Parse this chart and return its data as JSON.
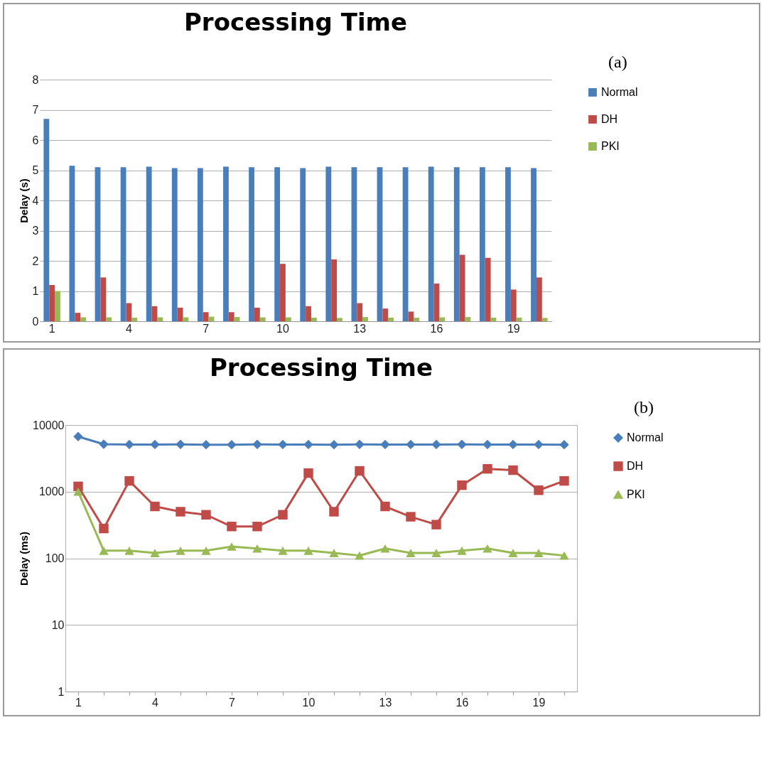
{
  "chart_data": [
    {
      "type": "bar",
      "title": "Processing Time",
      "ylabel": "Delay (s)",
      "annotations": [
        "(a)"
      ],
      "categories": [
        "1",
        null,
        null,
        "4",
        null,
        null,
        "7",
        null,
        null,
        "10",
        null,
        null,
        "13",
        null,
        null,
        "16",
        null,
        null,
        "19",
        null
      ],
      "series": [
        {
          "name": "Normal",
          "color": "#4a7ebb",
          "values": [
            6.7,
            5.15,
            5.1,
            5.1,
            5.12,
            5.07,
            5.07,
            5.12,
            5.1,
            5.1,
            5.07,
            5.12,
            5.1,
            5.1,
            5.1,
            5.12,
            5.1,
            5.1,
            5.1,
            5.07
          ]
        },
        {
          "name": "DH",
          "color": "#be4b48",
          "values": [
            1.2,
            0.28,
            1.45,
            0.6,
            0.5,
            0.45,
            0.3,
            0.3,
            0.45,
            1.9,
            0.5,
            2.05,
            0.6,
            0.42,
            0.32,
            1.25,
            2.2,
            2.1,
            1.05,
            1.45
          ]
        },
        {
          "name": "PKI",
          "color": "#98b954",
          "values": [
            1.0,
            0.13,
            0.13,
            0.12,
            0.13,
            0.13,
            0.15,
            0.14,
            0.13,
            0.13,
            0.12,
            0.11,
            0.14,
            0.12,
            0.12,
            0.13,
            0.14,
            0.12,
            0.12,
            0.11
          ]
        }
      ],
      "ylim": [
        0,
        8
      ],
      "yticks": [
        0,
        1,
        2,
        3,
        4,
        5,
        6,
        7,
        8
      ],
      "grid": "y",
      "legend": "right"
    },
    {
      "type": "line",
      "title": "Processing Time",
      "ylabel": "Delay (ms)",
      "annotations": [
        "(b)"
      ],
      "categories": [
        "1",
        null,
        null,
        "4",
        null,
        null,
        "7",
        null,
        null,
        "10",
        null,
        null,
        "13",
        null,
        null,
        "16",
        null,
        null,
        "19",
        null
      ],
      "series": [
        {
          "name": "Normal",
          "color": "#4a7ebb",
          "marker": "diamond",
          "values": [
            6700,
            5150,
            5100,
            5100,
            5120,
            5070,
            5070,
            5120,
            5100,
            5100,
            5070,
            5120,
            5100,
            5100,
            5100,
            5120,
            5100,
            5100,
            5100,
            5070
          ]
        },
        {
          "name": "DH",
          "color": "#be4b48",
          "marker": "square",
          "values": [
            1200,
            280,
            1450,
            600,
            500,
            450,
            300,
            300,
            450,
            1900,
            500,
            2050,
            600,
            420,
            320,
            1250,
            2200,
            2100,
            1050,
            1450
          ]
        },
        {
          "name": "PKI",
          "color": "#98b954",
          "marker": "triangle",
          "values": [
            1000,
            130,
            130,
            120,
            130,
            130,
            150,
            140,
            130,
            130,
            120,
            110,
            140,
            120,
            120,
            130,
            140,
            120,
            120,
            110
          ]
        }
      ],
      "log": true,
      "ylim": [
        1,
        10000
      ],
      "yticks": [
        1,
        10,
        100,
        1000,
        10000
      ],
      "grid": "y",
      "legend": "right"
    }
  ]
}
